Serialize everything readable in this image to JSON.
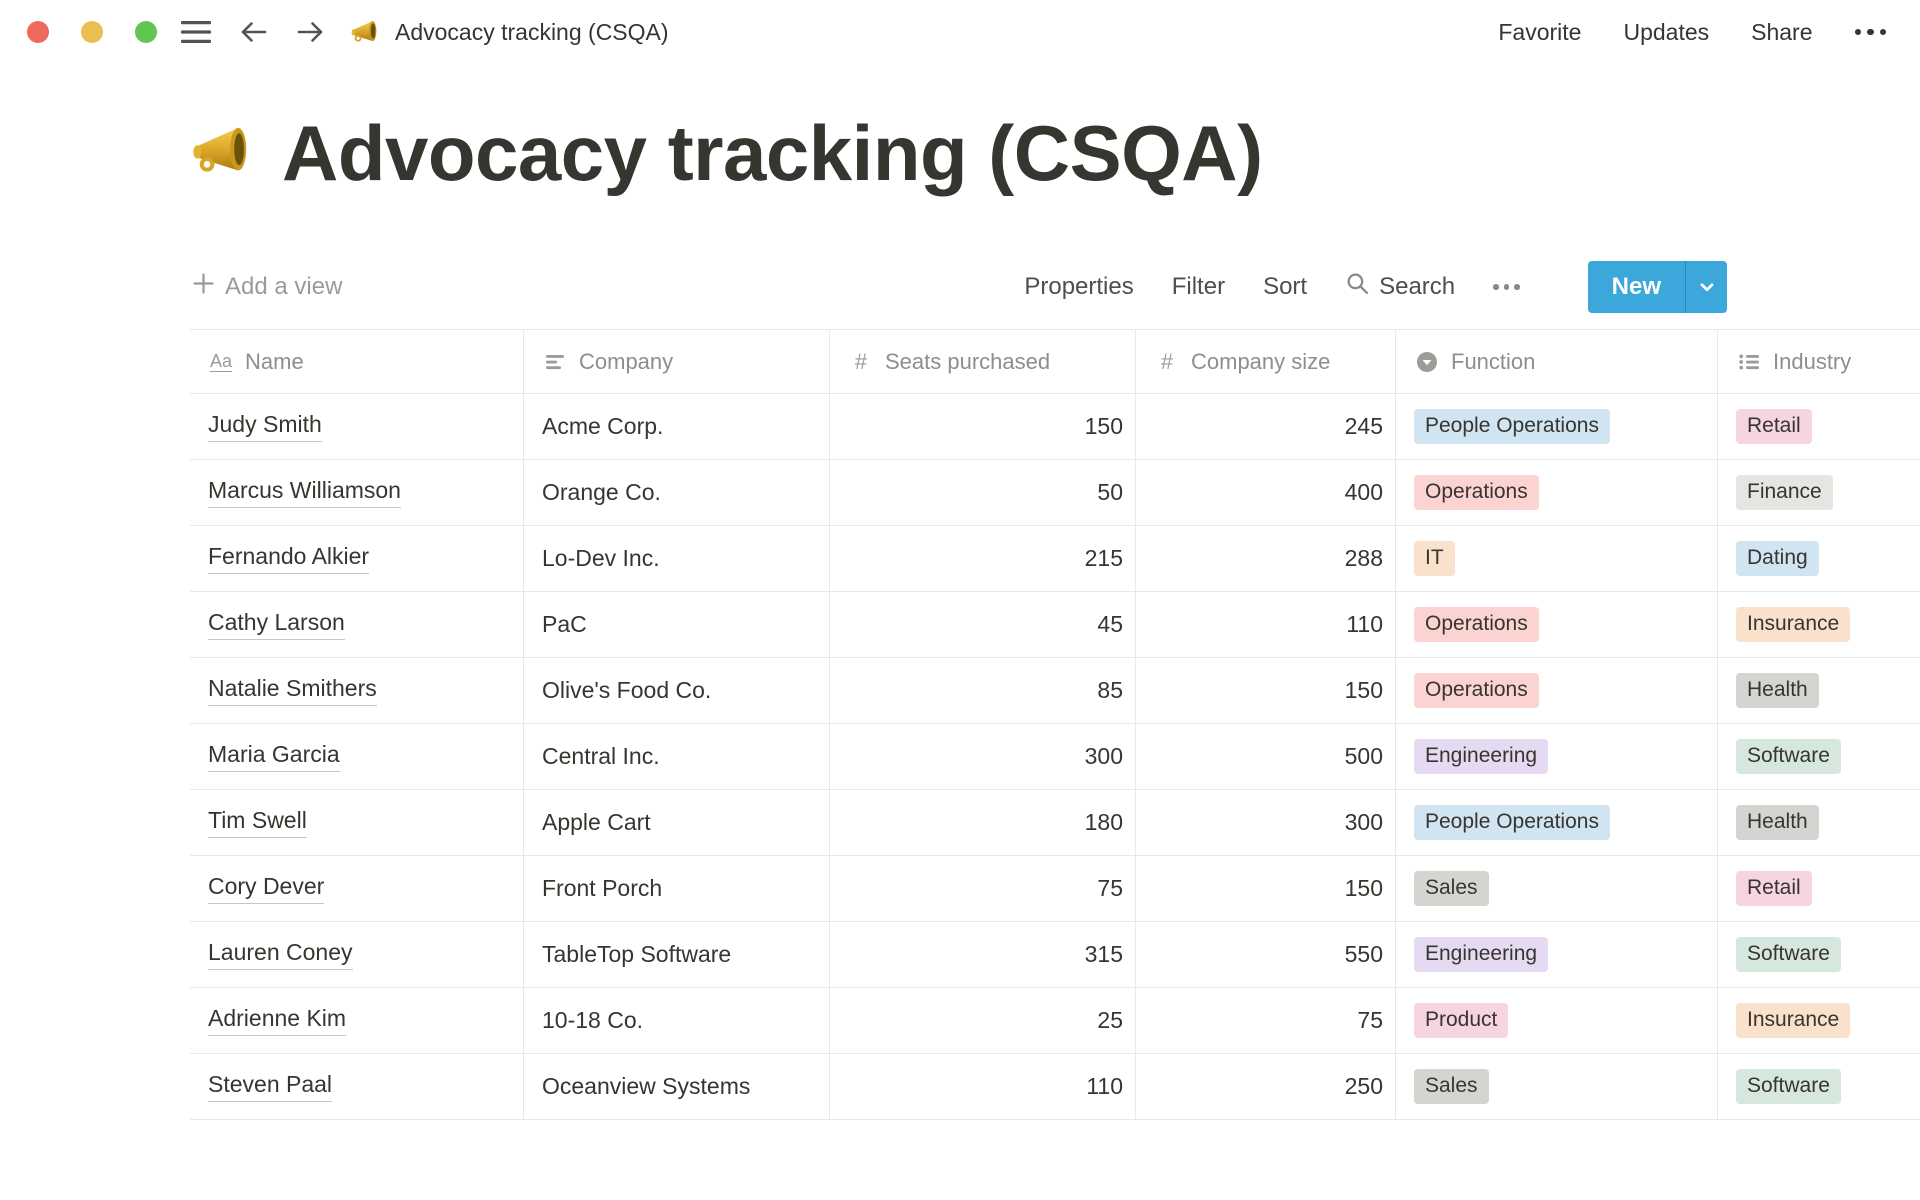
{
  "topbar": {
    "title": "Advocacy tracking (CSQA)",
    "actions": [
      "Share",
      "Updates",
      "Favorite"
    ],
    "window_controls": [
      "close",
      "minimize",
      "zoom"
    ]
  },
  "page": {
    "emoji": "megaphone",
    "title": "Advocacy tracking (CSQA)"
  },
  "toolbar": {
    "add_view": "Add a view",
    "menu": [
      "Properties",
      "Filter",
      "Sort"
    ],
    "search": "Search",
    "new_label": "New"
  },
  "table": {
    "columns": [
      {
        "key": "name",
        "label": "Name",
        "type": "title",
        "icon": "title-icon"
      },
      {
        "key": "company",
        "label": "Company",
        "type": "text",
        "icon": "text-icon"
      },
      {
        "key": "seats",
        "label": "Seats purchased",
        "type": "number",
        "icon": "number-icon"
      },
      {
        "key": "size",
        "label": "Company size",
        "type": "number",
        "icon": "number-icon"
      },
      {
        "key": "function",
        "label": "Function",
        "type": "select",
        "icon": "select-icon"
      },
      {
        "key": "industry",
        "label": "Industry",
        "type": "multiselect",
        "icon": "multi-select-icon"
      }
    ],
    "rows": [
      {
        "name": "Judy Smith",
        "company": "Acme Corp.",
        "seats": "150",
        "size": "245",
        "function": {
          "label": "People Operations",
          "color": "blue"
        },
        "industry": {
          "label": "Retail",
          "color": "pink"
        }
      },
      {
        "name": "Marcus Williamson",
        "company": "Orange Co.",
        "seats": "50",
        "size": "400",
        "function": {
          "label": "Operations",
          "color": "red"
        },
        "industry": {
          "label": "Finance",
          "color": "lightgray"
        }
      },
      {
        "name": "Fernando Alkier",
        "company": "Lo-Dev Inc.",
        "seats": "215",
        "size": "288",
        "function": {
          "label": "IT",
          "color": "orange"
        },
        "industry": {
          "label": "Dating",
          "color": "blue"
        }
      },
      {
        "name": "Cathy Larson",
        "company": "PaC",
        "seats": "45",
        "size": "110",
        "function": {
          "label": "Operations",
          "color": "red"
        },
        "industry": {
          "label": "Insurance",
          "color": "orange"
        }
      },
      {
        "name": "Natalie Smithers",
        "company": "Olive's Food Co.",
        "seats": "85",
        "size": "150",
        "function": {
          "label": "Operations",
          "color": "red"
        },
        "industry": {
          "label": "Health",
          "color": "gray"
        }
      },
      {
        "name": "Maria Garcia",
        "company": "Central Inc.",
        "seats": "300",
        "size": "500",
        "function": {
          "label": "Engineering",
          "color": "purple"
        },
        "industry": {
          "label": "Software",
          "color": "green"
        }
      },
      {
        "name": "Tim Swell",
        "company": "Apple Cart",
        "seats": "180",
        "size": "300",
        "function": {
          "label": "People Operations",
          "color": "blue"
        },
        "industry": {
          "label": "Health",
          "color": "gray"
        }
      },
      {
        "name": "Cory Dever",
        "company": "Front Porch",
        "seats": "75",
        "size": "150",
        "function": {
          "label": "Sales",
          "color": "gray"
        },
        "industry": {
          "label": "Retail",
          "color": "pink"
        }
      },
      {
        "name": "Lauren Coney",
        "company": "TableTop Software",
        "seats": "315",
        "size": "550",
        "function": {
          "label": "Engineering",
          "color": "purple"
        },
        "industry": {
          "label": "Software",
          "color": "green"
        }
      },
      {
        "name": "Adrienne Kim",
        "company": "10-18 Co.",
        "seats": "25",
        "size": "75",
        "function": {
          "label": "Product",
          "color": "pink"
        },
        "industry": {
          "label": "Insurance",
          "color": "orange"
        }
      },
      {
        "name": "Steven Paal",
        "company": "Oceanview Systems",
        "seats": "110",
        "size": "250",
        "function": {
          "label": "Sales",
          "color": "gray"
        },
        "industry": {
          "label": "Software",
          "color": "green"
        }
      }
    ]
  },
  "colors": {
    "accent": "#3CA7DA",
    "traffic_red": "#ED6A5E",
    "traffic_yellow": "#E9C04D",
    "traffic_green": "#61C554",
    "tags": {
      "blue": "#D0E4F2",
      "red": "#FBD3D0",
      "orange": "#FAE1CC",
      "gray": "#D6D4D0",
      "lightgray": "#E6E5E2",
      "purple": "#E5DAF1",
      "pink": "#F6D4E2",
      "green": "#D6E7DE"
    }
  }
}
